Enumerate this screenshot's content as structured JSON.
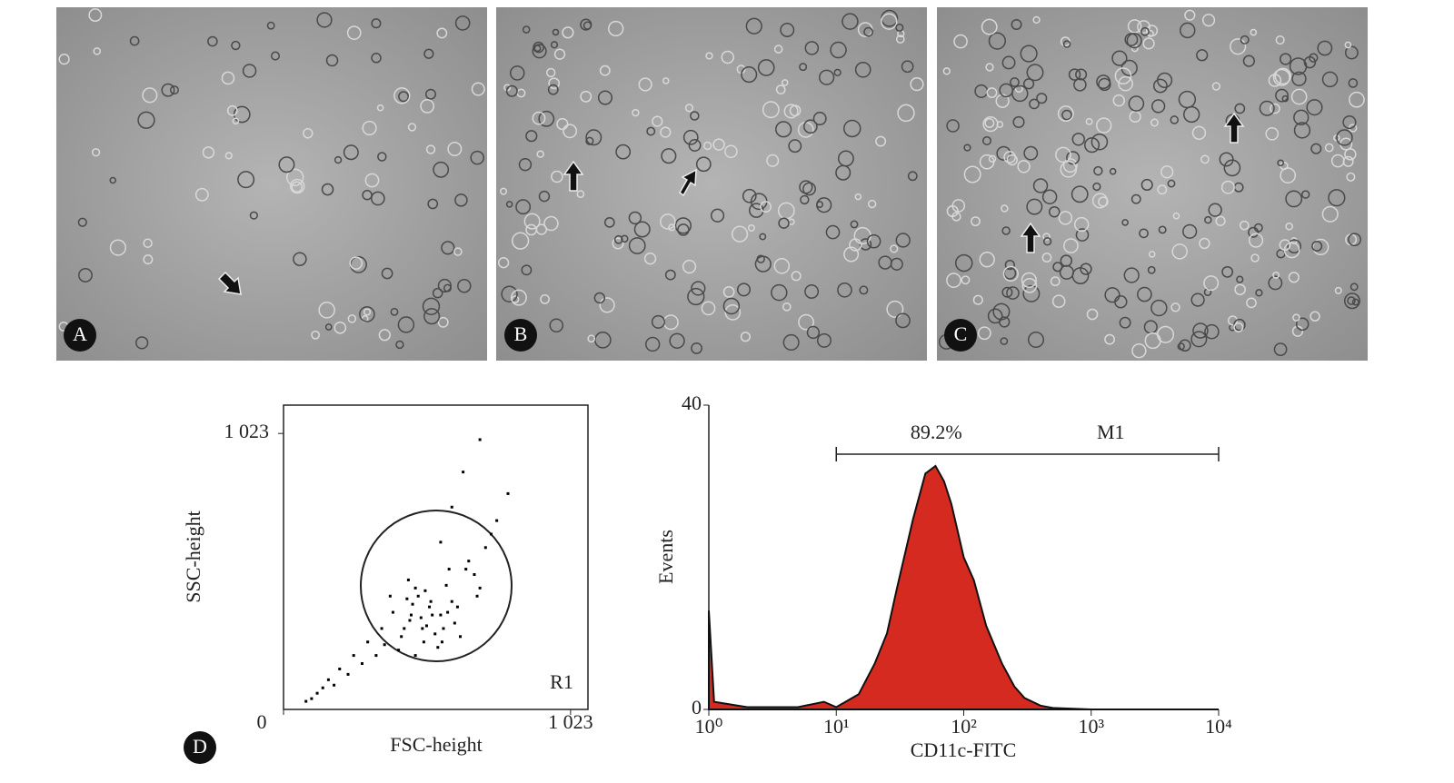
{
  "panels": [
    {
      "label": "A"
    },
    {
      "label": "B"
    },
    {
      "label": "C"
    }
  ],
  "panel_d_label": "D",
  "chart_data": [
    {
      "type": "scatter",
      "xlabel": "FSC-height",
      "ylabel": "SSC-height",
      "gate_label": "R1",
      "xlim": [
        0,
        1085
      ],
      "ylim": [
        0,
        1128
      ],
      "xticks": [
        0,
        {
          "value": 1023,
          "label": "1 023"
        }
      ],
      "yticks": [
        {
          "value": 1023,
          "label": "1 023"
        }
      ],
      "color": "#000000",
      "x": [
        520,
        480,
        560,
        430,
        600,
        450,
        500,
        540,
        470,
        610,
        390,
        650,
        420,
        580,
        510,
        460,
        700,
        350,
        300,
        250,
        200,
        160,
        140,
        120,
        530,
        490,
        440,
        570,
        620,
        680,
        720,
        760,
        800,
        380,
        410,
        550,
        590,
        630,
        470,
        505,
        455,
        525,
        495,
        445,
        565,
        585,
        660,
        690,
        740,
        360,
        330,
        280,
        230,
        180,
        100,
        80,
        560,
        600,
        640,
        700
      ],
      "y": [
        380,
        420,
        350,
        300,
        400,
        330,
        250,
        280,
        450,
        320,
        360,
        520,
        270,
        460,
        310,
        390,
        450,
        300,
        250,
        200,
        150,
        110,
        80,
        60,
        350,
        340,
        410,
        300,
        380,
        500,
        600,
        700,
        800,
        420,
        220,
        230,
        520,
        270,
        200,
        440,
        350,
        400,
        300,
        480,
        250,
        360,
        550,
        420,
        650,
        240,
        200,
        170,
        130,
        90,
        40,
        30,
        620,
        750,
        880,
        1000
      ]
    },
    {
      "type": "area",
      "xlabel": "CD11c-FITC",
      "ylabel": "Events",
      "log_x": true,
      "color": "#d42a20",
      "xlim": [
        1,
        10000
      ],
      "ylim": [
        0,
        40
      ],
      "xticks": [
        {
          "value": 1,
          "label": "10⁰"
        },
        {
          "value": 10,
          "label": "10¹"
        },
        {
          "value": 100,
          "label": "10²"
        },
        {
          "value": 1000,
          "label": "10³"
        },
        {
          "value": 10000,
          "label": "10⁴"
        }
      ],
      "yticks": [
        0,
        40
      ],
      "marker": {
        "label": "M1",
        "range": [
          10,
          10000
        ],
        "percent": {
          "value": 89.2,
          "label": "89.2%"
        }
      },
      "x": [
        1,
        1.1,
        2,
        5,
        8,
        10,
        15,
        20,
        25,
        30,
        40,
        50,
        60,
        70,
        80,
        100,
        120,
        150,
        200,
        250,
        300,
        400,
        500,
        1000,
        10000
      ],
      "values": [
        13,
        1,
        0.3,
        0.3,
        1,
        0.3,
        2,
        6,
        10,
        16,
        25,
        31,
        32,
        30,
        27,
        20,
        17,
        11,
        6,
        3,
        1.5,
        0.5,
        0.2,
        0,
        0
      ]
    }
  ]
}
